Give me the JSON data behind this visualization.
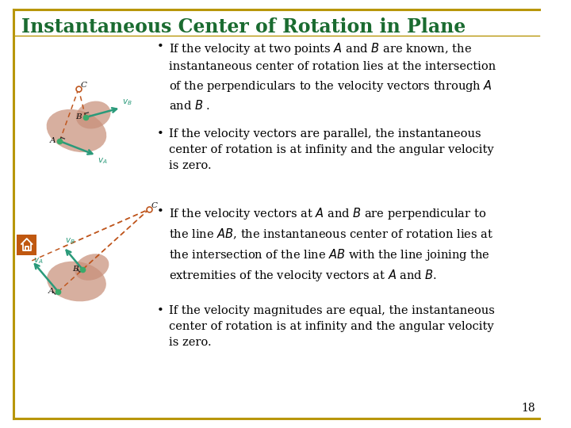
{
  "title": "Instantaneous Center of Rotation in Plane",
  "title_color": "#1a6b30",
  "title_fontsize": 17,
  "border_color": "#b8960a",
  "page_number": "18",
  "blob_color": "#c8907a",
  "dashed_color": "#c05820",
  "arrow_color": "#2a9a7a",
  "label_color": "#111111",
  "home_icon_color": "#c05810",
  "bullet_fontsize": 10.5,
  "bullet_texts": [
    "If the velocity at two points $A$ and $B$ are known, the\ninstantaneous center of rotation lies at the intersection\nof the perpendiculars to the velocity vectors through $A$\nand $B$ .",
    "If the velocity vectors are parallel, the instantaneous\ncenter of rotation is at infinity and the angular velocity\nis zero.",
    "If the velocity vectors at $A$ and $B$ are perpendicular to\nthe line $AB$, the instantaneous center of rotation lies at\nthe intersection of the line $AB$ with the line joining the\nextremities of the velocity vectors at $A$ and $B$.",
    "If the velocity magnitudes are equal, the instantaneous\ncenter of rotation is at infinity and the angular velocity\nis zero."
  ]
}
